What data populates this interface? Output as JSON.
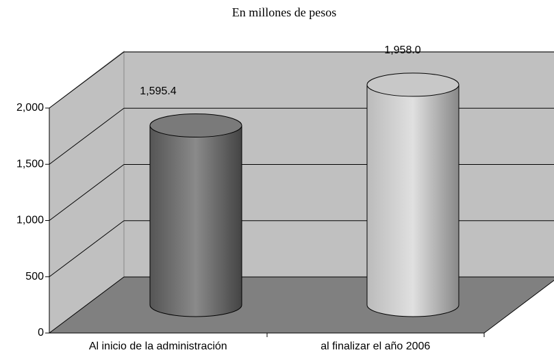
{
  "chart_data": {
    "type": "bar3d",
    "title": "En millones de pesos",
    "categories": [
      "Al inicio de la administración",
      "al finalizar el año 2006"
    ],
    "values": [
      1595.4,
      1958.0
    ],
    "value_labels": [
      "1,595.4",
      "1,958.0"
    ],
    "colors": [
      "#7a7a7a",
      "#c8c8c8"
    ],
    "ylim": [
      0,
      2000
    ],
    "yticks": [
      0,
      {
        "value": 500,
        "label": "500"
      },
      {
        "value": 1000,
        "label": "1,000"
      },
      {
        "value": 1500,
        "label": "1,500"
      },
      {
        "value": 2000,
        "label": "2,000"
      }
    ],
    "grid": true
  }
}
